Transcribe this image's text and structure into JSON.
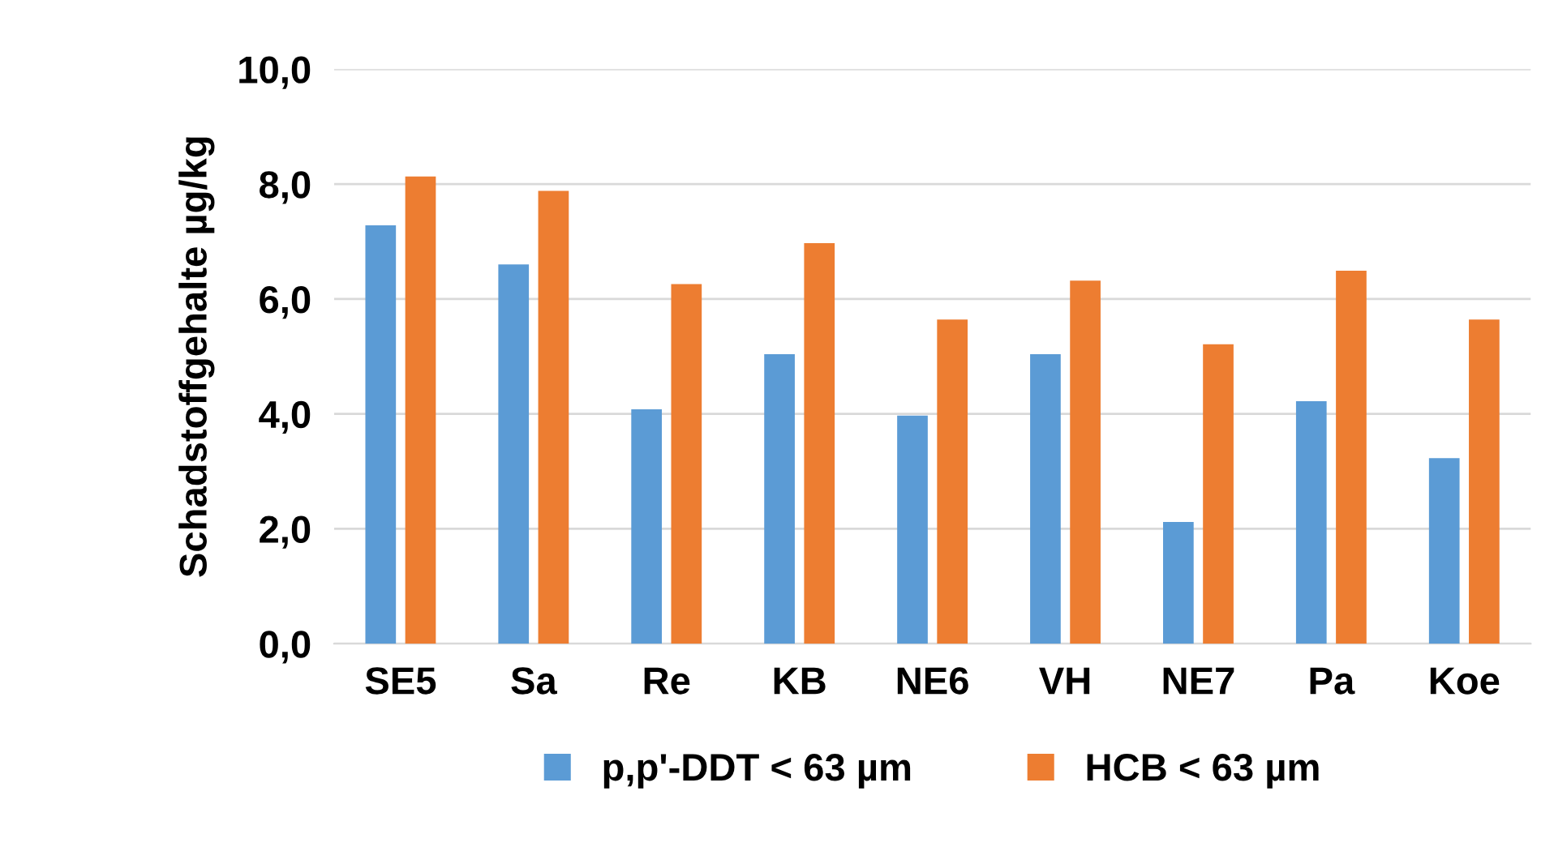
{
  "chart_data": {
    "type": "bar",
    "ylabel": "Schadstoffgehalte µg/kg",
    "categories": [
      "SE5",
      "Sa",
      "Re",
      "KB",
      "NE6",
      "VH",
      "NE7",
      "Pa",
      "Koe"
    ],
    "series": [
      {
        "name": "p,p'-DDT < 63 µm",
        "color": "#5b9bd5",
        "values": [
          7.28,
          6.6,
          4.08,
          5.04,
          3.97,
          5.04,
          2.12,
          4.22,
          3.23
        ]
      },
      {
        "name": "HCB < 63 µm",
        "color": "#ed7d31",
        "values": [
          8.13,
          7.88,
          6.26,
          6.97,
          5.64,
          6.32,
          5.21,
          6.49,
          5.64
        ]
      }
    ],
    "ylim": [
      0,
      10
    ],
    "yticks": [
      {
        "value": 0,
        "label": "0,0"
      },
      {
        "value": 2,
        "label": "2,0"
      },
      {
        "value": 4,
        "label": "4,0"
      },
      {
        "value": 6,
        "label": "6,0"
      },
      {
        "value": 8,
        "label": "8,0"
      },
      {
        "value": 10,
        "label": "10,0"
      }
    ],
    "grid": "y",
    "legend": "bottom"
  }
}
